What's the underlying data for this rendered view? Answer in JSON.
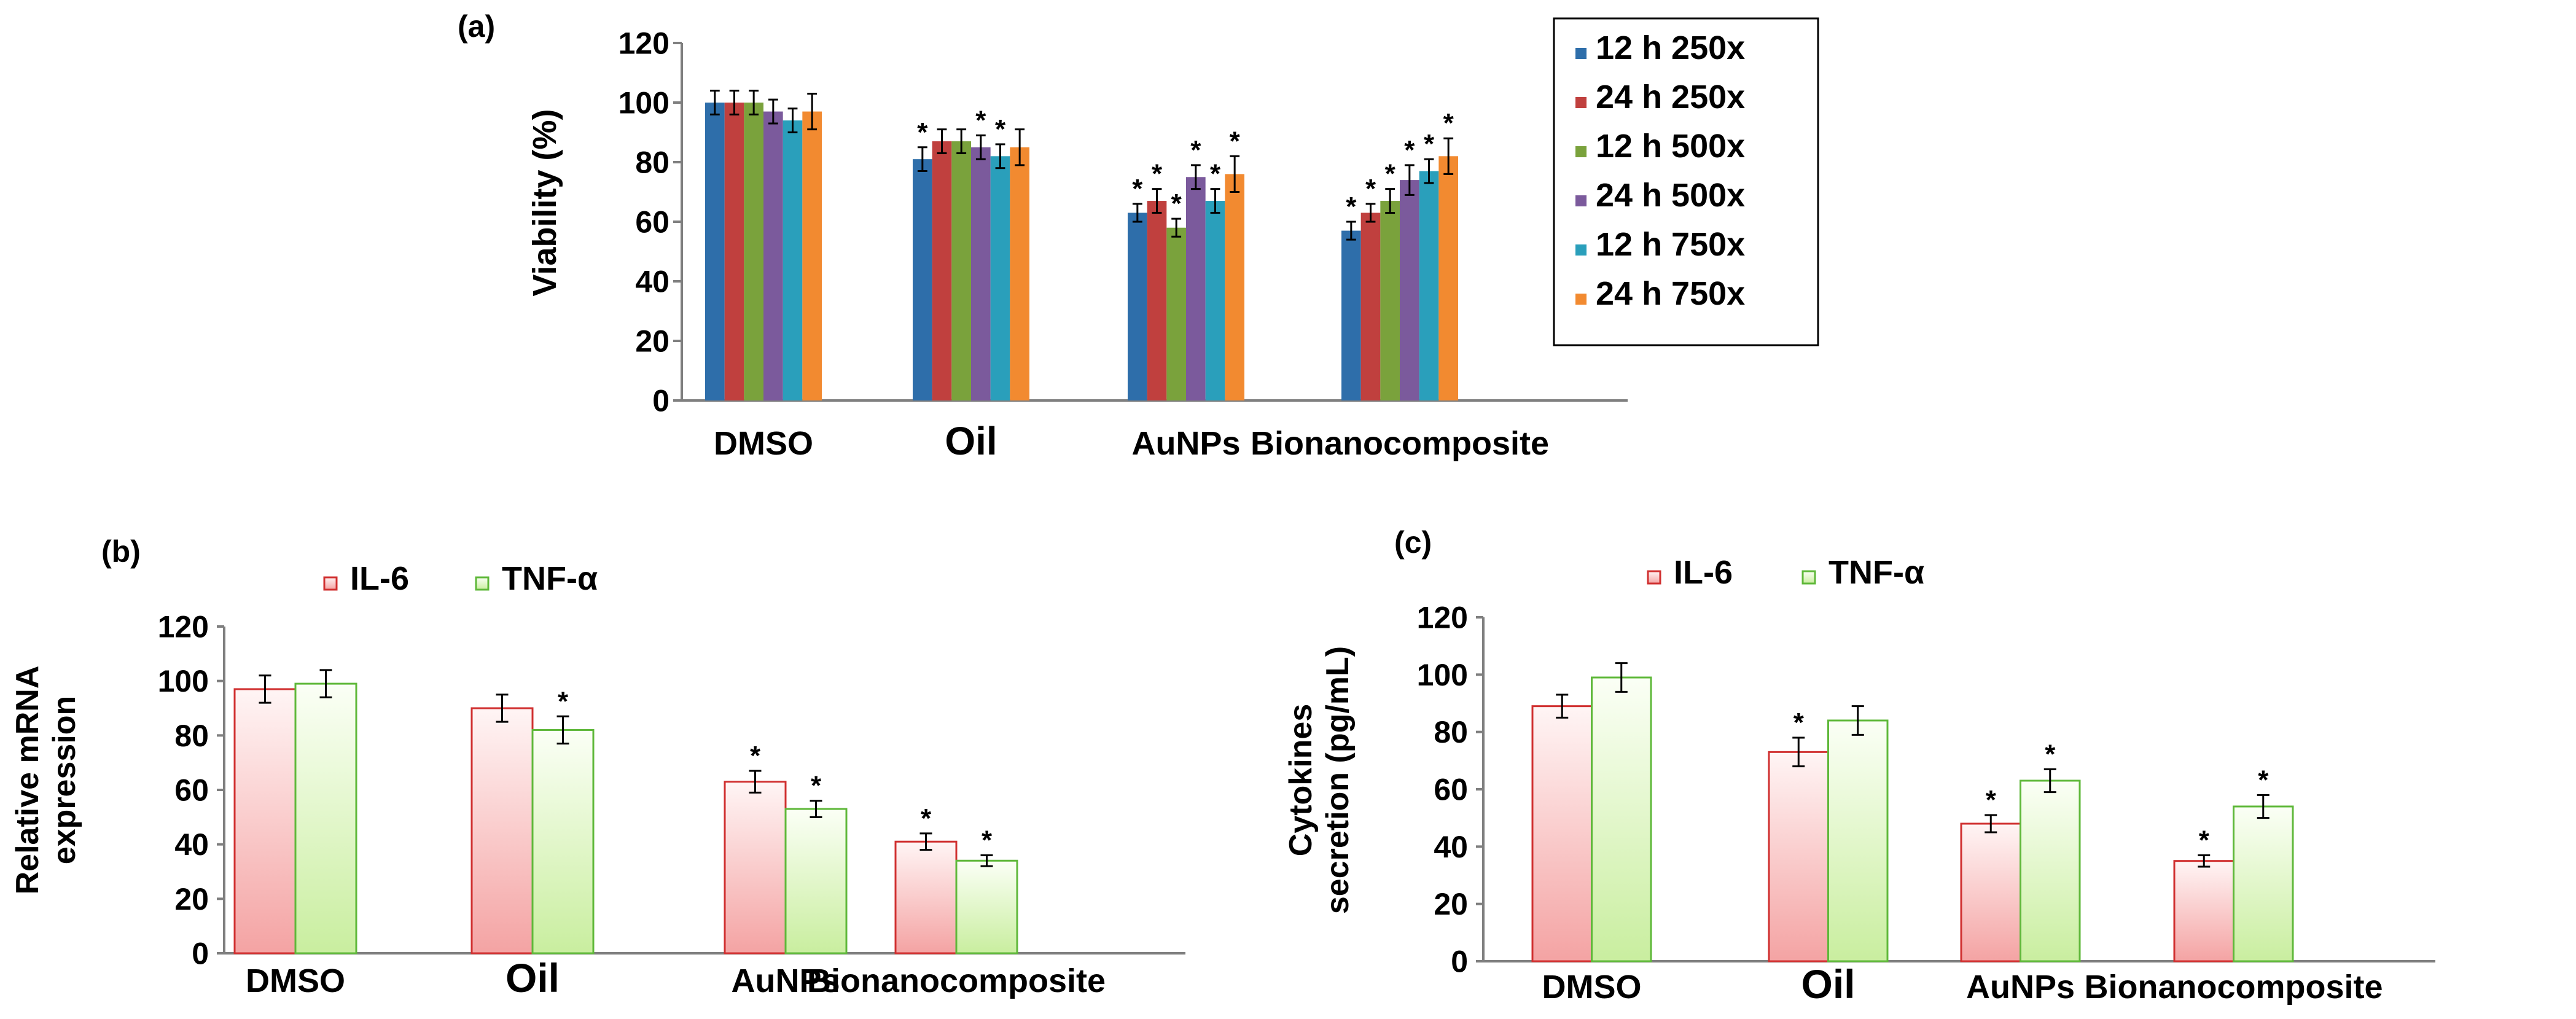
{
  "figure_name": "cell-viability-and-cytokine-figure",
  "colors": {
    "axis": "#7f7f7f",
    "text": "#000000",
    "error_bar": "#000000",
    "series_a": [
      "#2e6eaa",
      "#c0403e",
      "#7aa23c",
      "#7b5a9c",
      "#2a9fbb",
      "#f28a30"
    ],
    "il6_fill_top": "#fff5f5",
    "il6_fill_bottom": "#f4a3a3",
    "il6_stroke": "#d03030",
    "tnf_fill_top": "#fbfff6",
    "tnf_fill_bottom": "#c9ee9f",
    "tnf_stroke": "#5fb83a"
  },
  "chart_data": [
    {
      "id": "a",
      "panel_label": "(a)",
      "type": "bar",
      "title": "",
      "xlabel": "",
      "ylabel": "Viability (%)",
      "ylim": [
        0,
        120
      ],
      "yticks": [
        "0",
        "20",
        "40",
        "60",
        "80",
        "100",
        "120"
      ],
      "categories": [
        "DMSO",
        "Oil",
        "AuNPs",
        "Bionanocomposite"
      ],
      "legend_position": "right",
      "series": [
        {
          "name": "12 h 250x",
          "values": [
            100,
            81,
            63,
            57
          ],
          "errors": [
            4,
            4,
            3,
            3
          ],
          "sig": [
            false,
            true,
            true,
            true
          ]
        },
        {
          "name": "24 h 250x",
          "values": [
            100,
            87,
            67,
            63
          ],
          "errors": [
            4,
            4,
            4,
            3
          ],
          "sig": [
            false,
            false,
            true,
            true
          ]
        },
        {
          "name": "12 h 500x",
          "values": [
            100,
            87,
            58,
            67
          ],
          "errors": [
            4,
            4,
            3,
            4
          ],
          "sig": [
            false,
            false,
            true,
            true
          ]
        },
        {
          "name": "24 h 500x",
          "values": [
            97,
            85,
            75,
            74
          ],
          "errors": [
            4,
            4,
            4,
            5
          ],
          "sig": [
            false,
            true,
            true,
            true
          ]
        },
        {
          "name": "12 h 750x",
          "values": [
            94,
            82,
            67,
            77
          ],
          "errors": [
            4,
            4,
            4,
            4
          ],
          "sig": [
            false,
            true,
            true,
            true
          ]
        },
        {
          "name": "24 h 750x",
          "values": [
            97,
            85,
            76,
            82
          ],
          "errors": [
            6,
            6,
            6,
            6
          ],
          "sig": [
            false,
            false,
            true,
            true
          ]
        }
      ]
    },
    {
      "id": "b",
      "panel_label": "(b)",
      "type": "bar",
      "title": "",
      "xlabel": "",
      "ylabel_lines": [
        "Relative mRNA",
        "expression"
      ],
      "ylim": [
        0,
        120
      ],
      "yticks": [
        "0",
        "20",
        "40",
        "60",
        "80",
        "100",
        "120"
      ],
      "categories": [
        "DMSO",
        "Oil",
        "AuNPs",
        "Bionanocomposite"
      ],
      "legend_position": "top",
      "series": [
        {
          "name": "IL-6",
          "values": [
            97,
            90,
            63,
            41
          ],
          "errors": [
            5,
            5,
            4,
            3
          ],
          "sig": [
            false,
            false,
            true,
            true
          ]
        },
        {
          "name": "TNF-α",
          "values": [
            99,
            82,
            53,
            34
          ],
          "errors": [
            5,
            5,
            3,
            2
          ],
          "sig": [
            false,
            true,
            true,
            true
          ]
        }
      ]
    },
    {
      "id": "c",
      "panel_label": "(c)",
      "type": "bar",
      "title": "",
      "xlabel": "",
      "ylabel_lines": [
        "Cytokines",
        "secretion (pg/mL)"
      ],
      "ylim": [
        0,
        120
      ],
      "yticks": [
        "0",
        "20",
        "40",
        "60",
        "80",
        "100",
        "120"
      ],
      "categories": [
        "DMSO",
        "Oil",
        "AuNPs",
        "Bionanocomposite"
      ],
      "legend_position": "top",
      "series": [
        {
          "name": "IL-6",
          "values": [
            89,
            73,
            48,
            35
          ],
          "errors": [
            4,
            5,
            3,
            2
          ],
          "sig": [
            false,
            true,
            true,
            true
          ]
        },
        {
          "name": "TNF-α",
          "values": [
            99,
            84,
            63,
            54
          ],
          "errors": [
            5,
            5,
            4,
            4
          ],
          "sig": [
            false,
            false,
            true,
            true
          ]
        }
      ]
    }
  ]
}
